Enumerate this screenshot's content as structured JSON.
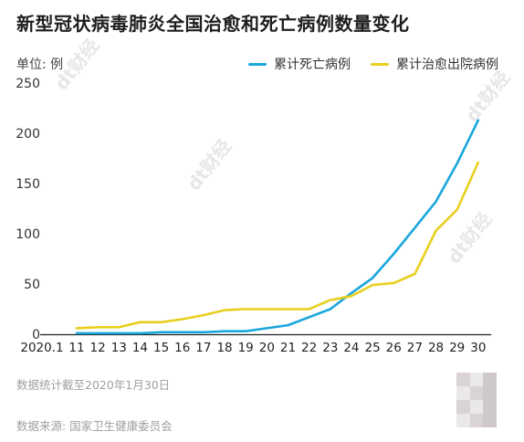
{
  "title": "新型冠状病毒肺炎全国治愈和死亡病例数量变化",
  "unit_label": "单位: 例",
  "notes": {
    "date": "数据统计截至2020年1月30日",
    "source": "数据来源: 国家卫生健康委员会"
  },
  "watermark": "dt财经",
  "chart_data": {
    "type": "line",
    "title": "新型冠状病毒肺炎全国治愈和死亡病例数量变化",
    "xlabel": "",
    "ylabel": "单位: 例",
    "ylim": [
      0,
      250
    ],
    "yticks": [
      0,
      50,
      100,
      150,
      200,
      250
    ],
    "grid": false,
    "legend_position": "top-right",
    "x": [
      "2020.1",
      "11",
      "12",
      "13",
      "14",
      "15",
      "16",
      "17",
      "18",
      "19",
      "20",
      "21",
      "22",
      "23",
      "24",
      "25",
      "26",
      "27",
      "28",
      "29",
      "30"
    ],
    "series": [
      {
        "name": "累计死亡病例",
        "color": "#1aa6dc",
        "values": [
          null,
          1,
          1,
          1,
          1,
          2,
          2,
          2,
          3,
          3,
          6,
          9,
          17,
          25,
          41,
          56,
          80,
          106,
          132,
          170,
          213
        ]
      },
      {
        "name": "累计治愈出院病例",
        "color": "#e8cf1f",
        "values": [
          null,
          6,
          7,
          7,
          12,
          12,
          15,
          19,
          24,
          25,
          25,
          25,
          25,
          34,
          38,
          49,
          51,
          60,
          103,
          124,
          171
        ]
      }
    ]
  }
}
